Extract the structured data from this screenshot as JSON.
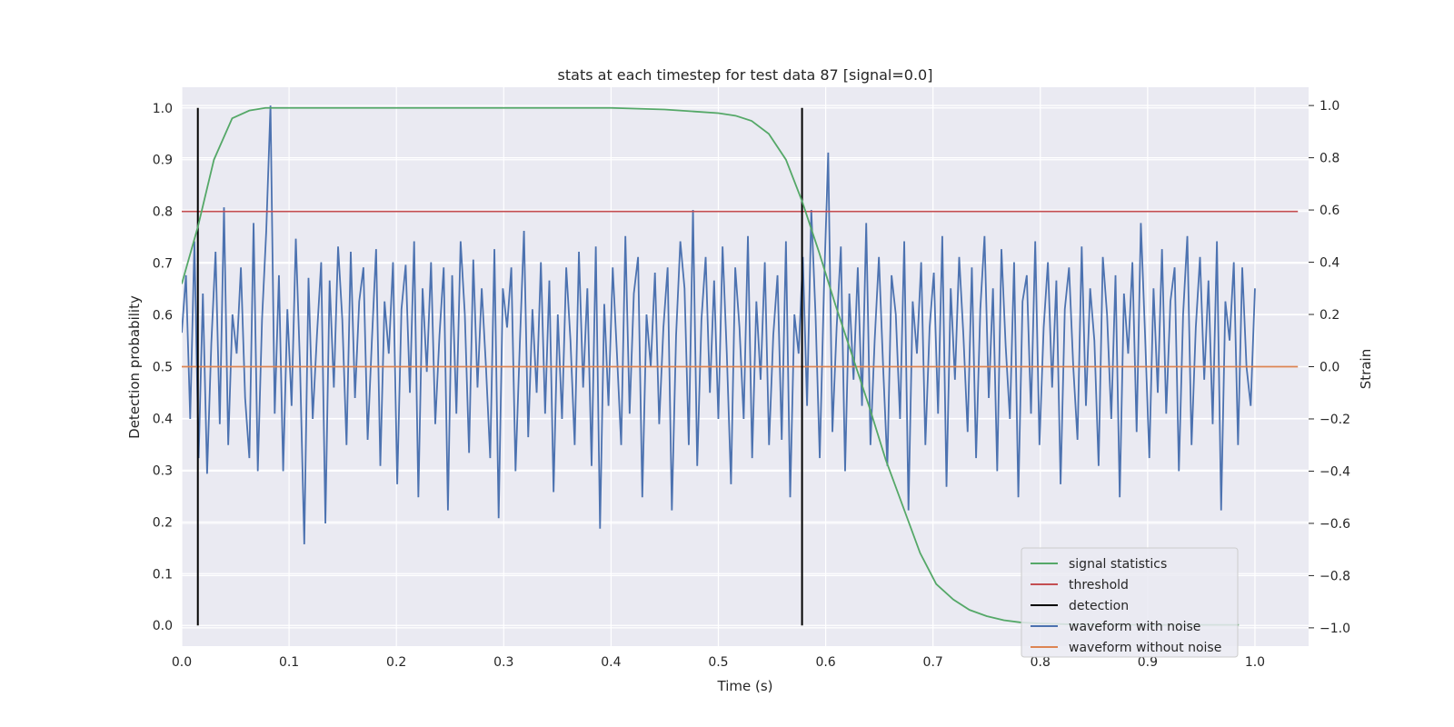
{
  "chart_data": {
    "type": "line",
    "title": "stats at each timestep for test data 87 [signal=0.0]",
    "xlabel": "Time (s)",
    "ylabel": "Detection probability",
    "y2label": "Strain",
    "xlim": [
      0.0,
      1.05
    ],
    "ylim": [
      -0.04,
      1.04
    ],
    "y2lim": [
      -1.0,
      1.0
    ],
    "xticks": [
      "0.0",
      "0.1",
      "0.2",
      "0.3",
      "0.4",
      "0.5",
      "0.6",
      "0.7",
      "0.8",
      "0.9",
      "1.0"
    ],
    "yticks": [
      "0.0",
      "0.1",
      "0.2",
      "0.3",
      "0.4",
      "0.5",
      "0.6",
      "0.7",
      "0.8",
      "0.9",
      "1.0"
    ],
    "y2ticks": [
      "−1.0",
      "−0.8",
      "−0.6",
      "−0.4",
      "−0.2",
      "0.0",
      "0.2",
      "0.4",
      "0.6",
      "0.8",
      "1.0"
    ],
    "grid": true,
    "legend_position": "lower-right",
    "colors": {
      "signal_statistics": "#55a868",
      "threshold": "#c44e52",
      "detection": "#000000",
      "waveform_with_noise": "#4c72b0",
      "waveform_without_noise": "#dd8452",
      "plot_background": "#eaeaf2",
      "grid": "#ffffff"
    },
    "series": [
      {
        "name": "signal statistics",
        "axis": "left",
        "x": [
          0.0,
          0.015,
          0.03,
          0.047,
          0.063,
          0.078,
          0.094,
          0.2,
          0.3,
          0.4,
          0.45,
          0.5,
          0.516,
          0.531,
          0.547,
          0.563,
          0.578,
          0.594,
          0.609,
          0.625,
          0.641,
          0.656,
          0.672,
          0.688,
          0.703,
          0.719,
          0.734,
          0.75,
          0.766,
          0.781,
          0.797,
          0.813,
          0.828,
          0.844,
          0.9,
          0.95,
          0.985
        ],
        "y": [
          0.66,
          0.77,
          0.9,
          0.98,
          0.995,
          1.0,
          1.0,
          1.0,
          1.0,
          1.0,
          0.997,
          0.99,
          0.985,
          0.975,
          0.95,
          0.9,
          0.82,
          0.72,
          0.62,
          0.52,
          0.42,
          0.32,
          0.23,
          0.14,
          0.08,
          0.05,
          0.03,
          0.018,
          0.01,
          0.006,
          0.004,
          0.003,
          0.002,
          0.002,
          0.001,
          0.001,
          0.001
        ]
      },
      {
        "name": "threshold",
        "axis": "left",
        "x": [
          0.0,
          1.04
        ],
        "y": [
          0.8,
          0.8
        ]
      },
      {
        "name": "detection",
        "axis": "left",
        "vlines": [
          0.015,
          0.578
        ],
        "y": [
          0.0,
          1.0
        ]
      },
      {
        "name": "waveform with noise",
        "axis": "right",
        "x_start": 0.0,
        "x_end": 1.0,
        "y": [
          0.13,
          0.35,
          -0.2,
          0.48,
          -0.35,
          0.28,
          -0.41,
          0.09,
          0.44,
          -0.22,
          0.61,
          -0.3,
          0.2,
          0.05,
          0.38,
          -0.12,
          -0.35,
          0.55,
          -0.4,
          0.18,
          0.52,
          1.0,
          -0.18,
          0.35,
          -0.4,
          0.22,
          -0.15,
          0.49,
          0.0,
          -0.68,
          0.34,
          -0.2,
          0.12,
          0.4,
          -0.6,
          0.33,
          -0.08,
          0.46,
          0.18,
          -0.3,
          0.44,
          -0.12,
          0.25,
          0.38,
          -0.28,
          0.1,
          0.45,
          -0.38,
          0.25,
          0.05,
          0.4,
          -0.45,
          0.22,
          0.39,
          -0.1,
          0.48,
          -0.5,
          0.3,
          -0.02,
          0.4,
          -0.22,
          0.12,
          0.38,
          -0.55,
          0.35,
          -0.18,
          0.48,
          0.2,
          -0.33,
          0.41,
          -0.08,
          0.3,
          0.0,
          -0.35,
          0.45,
          -0.58,
          0.3,
          0.15,
          0.38,
          -0.4,
          0.08,
          0.52,
          -0.27,
          0.22,
          -0.1,
          0.4,
          -0.18,
          0.33,
          -0.48,
          0.2,
          -0.2,
          0.38,
          0.1,
          -0.3,
          0.44,
          -0.08,
          0.3,
          -0.38,
          0.46,
          -0.62,
          0.24,
          -0.15,
          0.38,
          0.05,
          -0.3,
          0.5,
          -0.18,
          0.28,
          0.42,
          -0.5,
          0.2,
          0.0,
          0.36,
          -0.22,
          0.15,
          0.38,
          -0.55,
          0.12,
          0.48,
          0.3,
          -0.3,
          0.6,
          -0.38,
          0.18,
          0.42,
          -0.1,
          0.33,
          -0.2,
          0.46,
          0.05,
          -0.45,
          0.38,
          0.15,
          -0.2,
          0.5,
          -0.35,
          0.25,
          -0.05,
          0.4,
          -0.3,
          0.12,
          0.35,
          -0.28,
          0.48,
          -0.5,
          0.2,
          0.05,
          0.42,
          -0.15,
          0.6,
          0.2,
          -0.35,
          0.3,
          0.82,
          -0.25,
          0.15,
          0.46,
          -0.4,
          0.28,
          -0.05,
          0.38,
          -0.15,
          0.55,
          -0.3,
          0.1,
          0.42,
          0.0,
          -0.38,
          0.35,
          0.2,
          -0.2,
          0.48,
          -0.55,
          0.25,
          0.05,
          0.4,
          -0.3,
          0.15,
          0.36,
          -0.18,
          0.5,
          -0.46,
          0.3,
          -0.05,
          0.42,
          0.12,
          -0.25,
          0.38,
          -0.35,
          0.22,
          0.5,
          -0.12,
          0.3,
          -0.4,
          0.45,
          0.08,
          -0.2,
          0.4,
          -0.5,
          0.25,
          0.35,
          -0.18,
          0.48,
          -0.3,
          0.15,
          0.4,
          -0.08,
          0.33,
          -0.45,
          0.22,
          0.38,
          0.0,
          -0.28,
          0.46,
          -0.15,
          0.3,
          0.1,
          -0.38,
          0.42,
          0.2,
          -0.2,
          0.35,
          -0.5,
          0.28,
          0.05,
          0.4,
          -0.25,
          0.55,
          0.12,
          -0.35,
          0.3,
          -0.1,
          0.45,
          -0.18,
          0.25,
          0.38,
          -0.4,
          0.2,
          0.5,
          -0.3,
          0.15,
          0.42,
          -0.05,
          0.33,
          -0.22,
          0.48,
          -0.55,
          0.25,
          0.1,
          0.4,
          -0.3,
          0.38,
          0.0,
          -0.15,
          0.3
        ],
        "noise_note": ""
      },
      {
        "name": "waveform without noise",
        "axis": "right",
        "x": [
          0.0,
          1.04
        ],
        "y": [
          0.0,
          0.0
        ]
      }
    ],
    "legend": [
      "signal statistics",
      "threshold",
      "detection",
      "waveform with noise",
      "waveform without noise"
    ]
  }
}
